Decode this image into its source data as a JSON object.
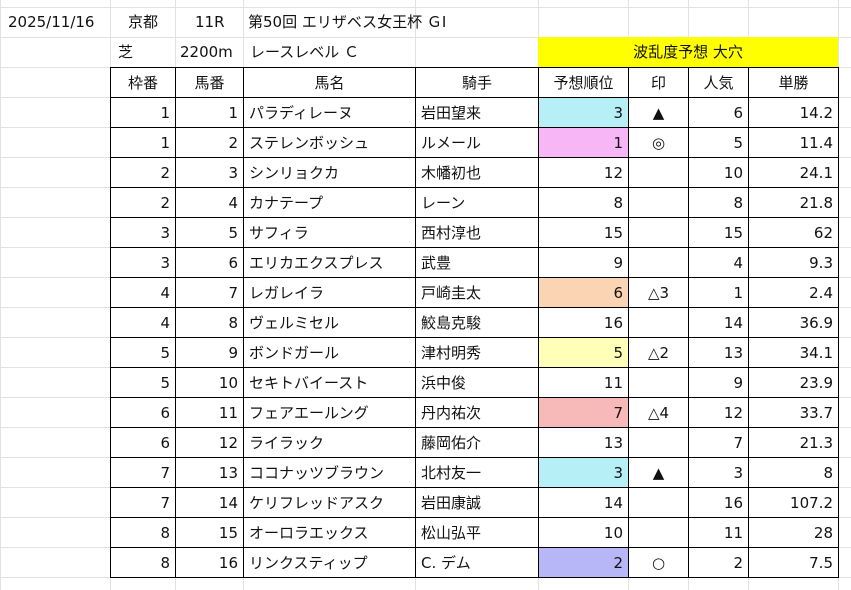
{
  "header": {
    "date": "2025/11/16",
    "venue": "京都",
    "race": "11R",
    "title": "第50回 エリザベス女王杯 ＧⅠ",
    "surface": "芝",
    "distance": "2200m",
    "level": "レースレベル Ｃ",
    "forecast": "波乱度予想 大穴",
    "forecast_color": "#ffff00"
  },
  "table": {
    "columns": [
      "枠番",
      "馬番",
      "馬名",
      "騎手",
      "予想順位",
      "印",
      "人気",
      "単勝"
    ],
    "rows": [
      [
        1,
        1,
        "パラディレーヌ",
        "岩田望来",
        3,
        "▲",
        6,
        14.2
      ],
      [
        1,
        2,
        "ステレンボッシュ",
        "ルメール",
        1,
        "◎",
        5,
        11.4
      ],
      [
        2,
        3,
        "シンリョクカ",
        "木幡初也",
        12,
        null,
        10,
        24.1
      ],
      [
        2,
        4,
        "カナテープ",
        "レーン",
        8,
        null,
        8,
        21.8
      ],
      [
        3,
        5,
        "サフィラ",
        "西村淳也",
        15,
        null,
        15,
        62
      ],
      [
        3,
        6,
        "エリカエクスプレス",
        "武豊",
        9,
        null,
        4,
        9.3
      ],
      [
        4,
        7,
        "レガレイラ",
        "戸崎圭太",
        6,
        "△3",
        1,
        2.4
      ],
      [
        4,
        8,
        "ヴェルミセル",
        "鮫島克駿",
        16,
        null,
        14,
        36.9
      ],
      [
        5,
        9,
        "ボンドガール",
        "津村明秀",
        5,
        "△2",
        13,
        34.1
      ],
      [
        5,
        10,
        "セキトバイースト",
        "浜中俊",
        11,
        null,
        9,
        23.9
      ],
      [
        6,
        11,
        "フェアエールング",
        "丹内祐次",
        7,
        "△4",
        12,
        33.7
      ],
      [
        6,
        12,
        "ライラック",
        "藤岡佑介",
        13,
        null,
        7,
        21.3
      ],
      [
        7,
        13,
        "ココナッツブラウン",
        "北村友一",
        3,
        "▲",
        3,
        8
      ],
      [
        7,
        14,
        "ケリフレッドアスク",
        "岩田康誠",
        14,
        null,
        16,
        107.2
      ],
      [
        8,
        15,
        "オーロラエックス",
        "松山弘平",
        10,
        null,
        11,
        28
      ],
      [
        8,
        16,
        "リンクスティップ",
        "C. デム",
        2,
        "○",
        2,
        7.5
      ]
    ],
    "rank_colors": [
      "#b7eff7",
      "#f7b7f7",
      null,
      null,
      null,
      null,
      "#fbd4b4",
      null,
      "#ffffb7",
      null,
      "#f8b9b9",
      null,
      "#b7eff7",
      null,
      null,
      "#b7b7f7"
    ]
  }
}
